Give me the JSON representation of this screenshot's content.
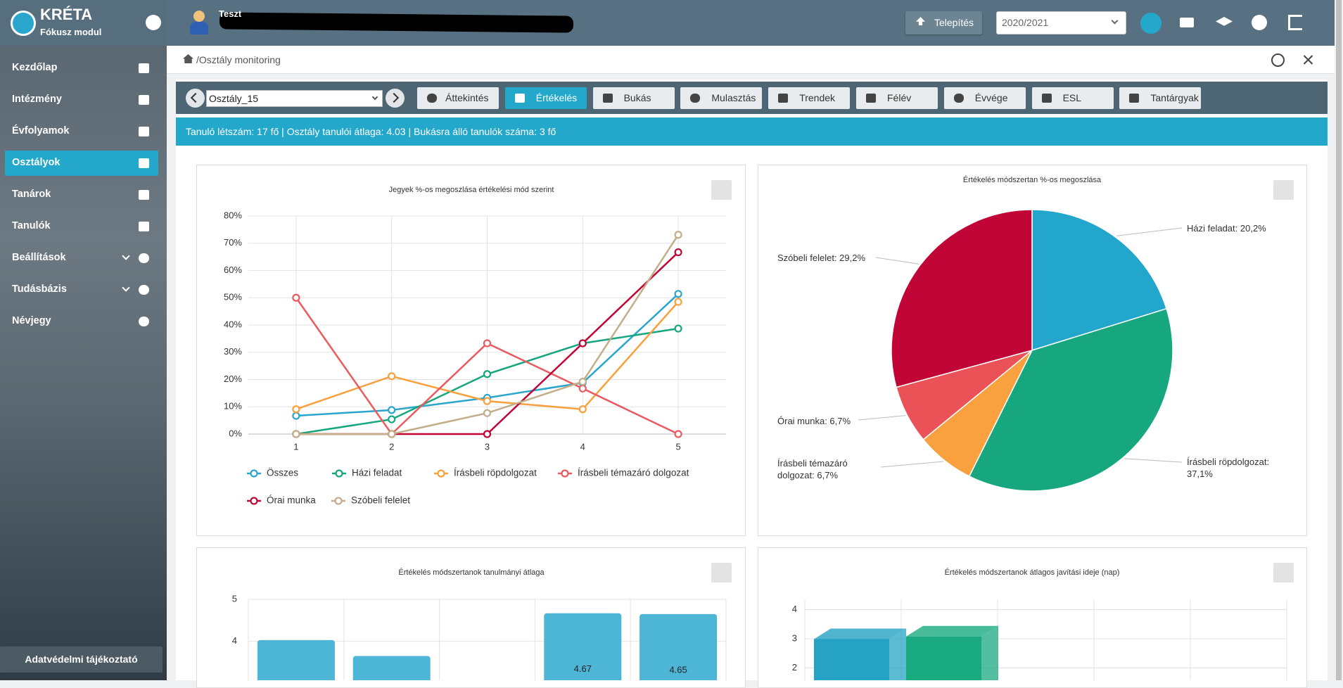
{
  "sidebar": {
    "logo_title": "KRÉTA",
    "logo_subtitle": "Fókusz modul",
    "menu": [
      "Kezdőlap",
      "Intézmény",
      "Évfolyamok",
      "Osztályok",
      "Tanárok",
      "Tanulók",
      "Beállítások",
      "Tudásbázis",
      "Névjegy"
    ],
    "footer_button": "Adatvédelmi tájékoztató"
  },
  "header": {
    "user": "Teszt",
    "install_button": "Telepítés",
    "school_year": "2020/2021"
  },
  "breadcrumb": "/Osztály monitoring",
  "toolbar": {
    "class_select": "Osztály_15",
    "tabs": [
      "Áttekintés",
      "Értékelés",
      "Bukás",
      "Mulasztás",
      "Trendek",
      "Félév",
      "Évvége",
      "ESL",
      "Tantárgyak"
    ]
  },
  "info": "Tanuló létszám: 17 fő | Osztály tanulói átlaga: 4.03 | Bukásra álló tanulók száma: 3 fő",
  "chart_data": [
    {
      "type": "line",
      "title": "Jegyek %-os megoszlása értékelési mód szerint",
      "categories": [
        "1",
        "2",
        "3",
        "4",
        "5"
      ],
      "ylim": [
        0,
        80
      ],
      "yticks": [
        {
          "value": 0,
          "label": "0%"
        },
        {
          "value": 10,
          "label": "10%"
        },
        {
          "value": 20,
          "label": "20%"
        },
        {
          "value": 30,
          "label": "30%"
        },
        {
          "value": 40,
          "label": "40%"
        },
        {
          "value": 50,
          "label": "50%"
        },
        {
          "value": 60,
          "label": "60%"
        },
        {
          "value": 70,
          "label": "70%"
        },
        {
          "value": 80,
          "label": "80%"
        }
      ],
      "grid": true,
      "series": [
        {
          "name": "Összes",
          "color": "#2aa6cc",
          "values": [
            6.7,
            8.8,
            13.3,
            18.8,
            51.4
          ]
        },
        {
          "name": "Házi feladat",
          "color": "#16a67f",
          "values": [
            0,
            5.4,
            22,
            33.3,
            38.7
          ]
        },
        {
          "name": "Írásbeli röpdolgozat",
          "color": "#f7a03c",
          "values": [
            9.1,
            21.2,
            12.1,
            9.1,
            48.5
          ]
        },
        {
          "name": "Írásbeli témazáró dolgozat",
          "color": "#ea5a5f",
          "values": [
            50,
            0,
            33.3,
            16.7,
            0
          ]
        },
        {
          "name": "Órai munka",
          "color": "#c10637",
          "values": [
            0,
            0,
            0,
            33.3,
            66.7
          ]
        },
        {
          "name": "Szóbeli felelet",
          "color": "#c2ae88",
          "values": [
            0,
            0,
            7.7,
            19.2,
            73.1
          ]
        }
      ]
    },
    {
      "type": "pie",
      "title": "Értékelés módszertan %-os megoszlása",
      "values": [
        20.2,
        37.1,
        6.7,
        6.7,
        29.2
      ],
      "value_labels": [
        "Házi feladat: 20,2%",
        "Írásbeli röpdolgozat: 37,1%",
        "Írásbeli témazáró dolgozat: 6,7%",
        "Órai munka: 6,7%",
        "Szóbeli felelet: 29,2%"
      ],
      "colors": [
        "#23a6cc",
        "#17a77f",
        "#f9a03f",
        "#eb5257",
        "#c10637"
      ]
    },
    {
      "type": "bar",
      "title": "Értékelés módszertanok tanulmányi átlaga",
      "values": [
        4.03,
        3.65,
        null,
        4.67,
        4.65
      ],
      "color": "#4db5d5",
      "ylim": [
        0,
        5
      ],
      "yticks": [
        4,
        5
      ],
      "grid": true
    },
    {
      "type": "bar3d",
      "title": "Értékelés módszertanok átlagos javítási ideje (nap)",
      "values": [
        2.99,
        3.08
      ],
      "colors": [
        "#26a3c4",
        "#1aaa80"
      ],
      "ylim": [
        0,
        4.35
      ],
      "yticks": [
        2,
        3,
        4
      ],
      "grid": true
    }
  ]
}
